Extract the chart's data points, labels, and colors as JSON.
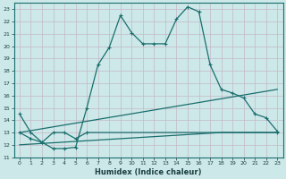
{
  "xlabel": "Humidex (Indice chaleur)",
  "background_color": "#cde8e8",
  "line_color": "#1a6e6e",
  "xlim": [
    -0.5,
    23.5
  ],
  "ylim": [
    11,
    23.5
  ],
  "xtick_labels": [
    "0",
    "1",
    "2",
    "3",
    "4",
    "5",
    "6",
    "7",
    "8",
    "9",
    "10",
    "11",
    "12",
    "13",
    "14",
    "15",
    "16",
    "17",
    "18",
    "19",
    "20",
    "21",
    "22",
    "23"
  ],
  "ytick_values": [
    11,
    12,
    13,
    14,
    15,
    16,
    17,
    18,
    19,
    20,
    21,
    22,
    23
  ],
  "series1_x": [
    0,
    1,
    2,
    3,
    4,
    5,
    6,
    7,
    8,
    9,
    10,
    11,
    12,
    13,
    14,
    15,
    16,
    17,
    18,
    19,
    20,
    21,
    22,
    23
  ],
  "series1_y": [
    14.5,
    13.0,
    12.2,
    11.7,
    11.7,
    11.8,
    15.0,
    18.5,
    19.9,
    22.5,
    21.1,
    20.2,
    20.2,
    20.2,
    22.2,
    23.2,
    22.8,
    18.5,
    16.5,
    16.2,
    15.8,
    14.5,
    14.2,
    13.1
  ],
  "series2_x": [
    0,
    1,
    2,
    3,
    4,
    5,
    6,
    23
  ],
  "series2_y": [
    13.0,
    12.5,
    12.2,
    13.0,
    13.0,
    12.5,
    13.0,
    13.0
  ],
  "series3_x": [
    0,
    23
  ],
  "series3_y": [
    13.0,
    16.5
  ],
  "series4_x": [
    0,
    18,
    23
  ],
  "series4_y": [
    12.0,
    13.0,
    13.0
  ]
}
